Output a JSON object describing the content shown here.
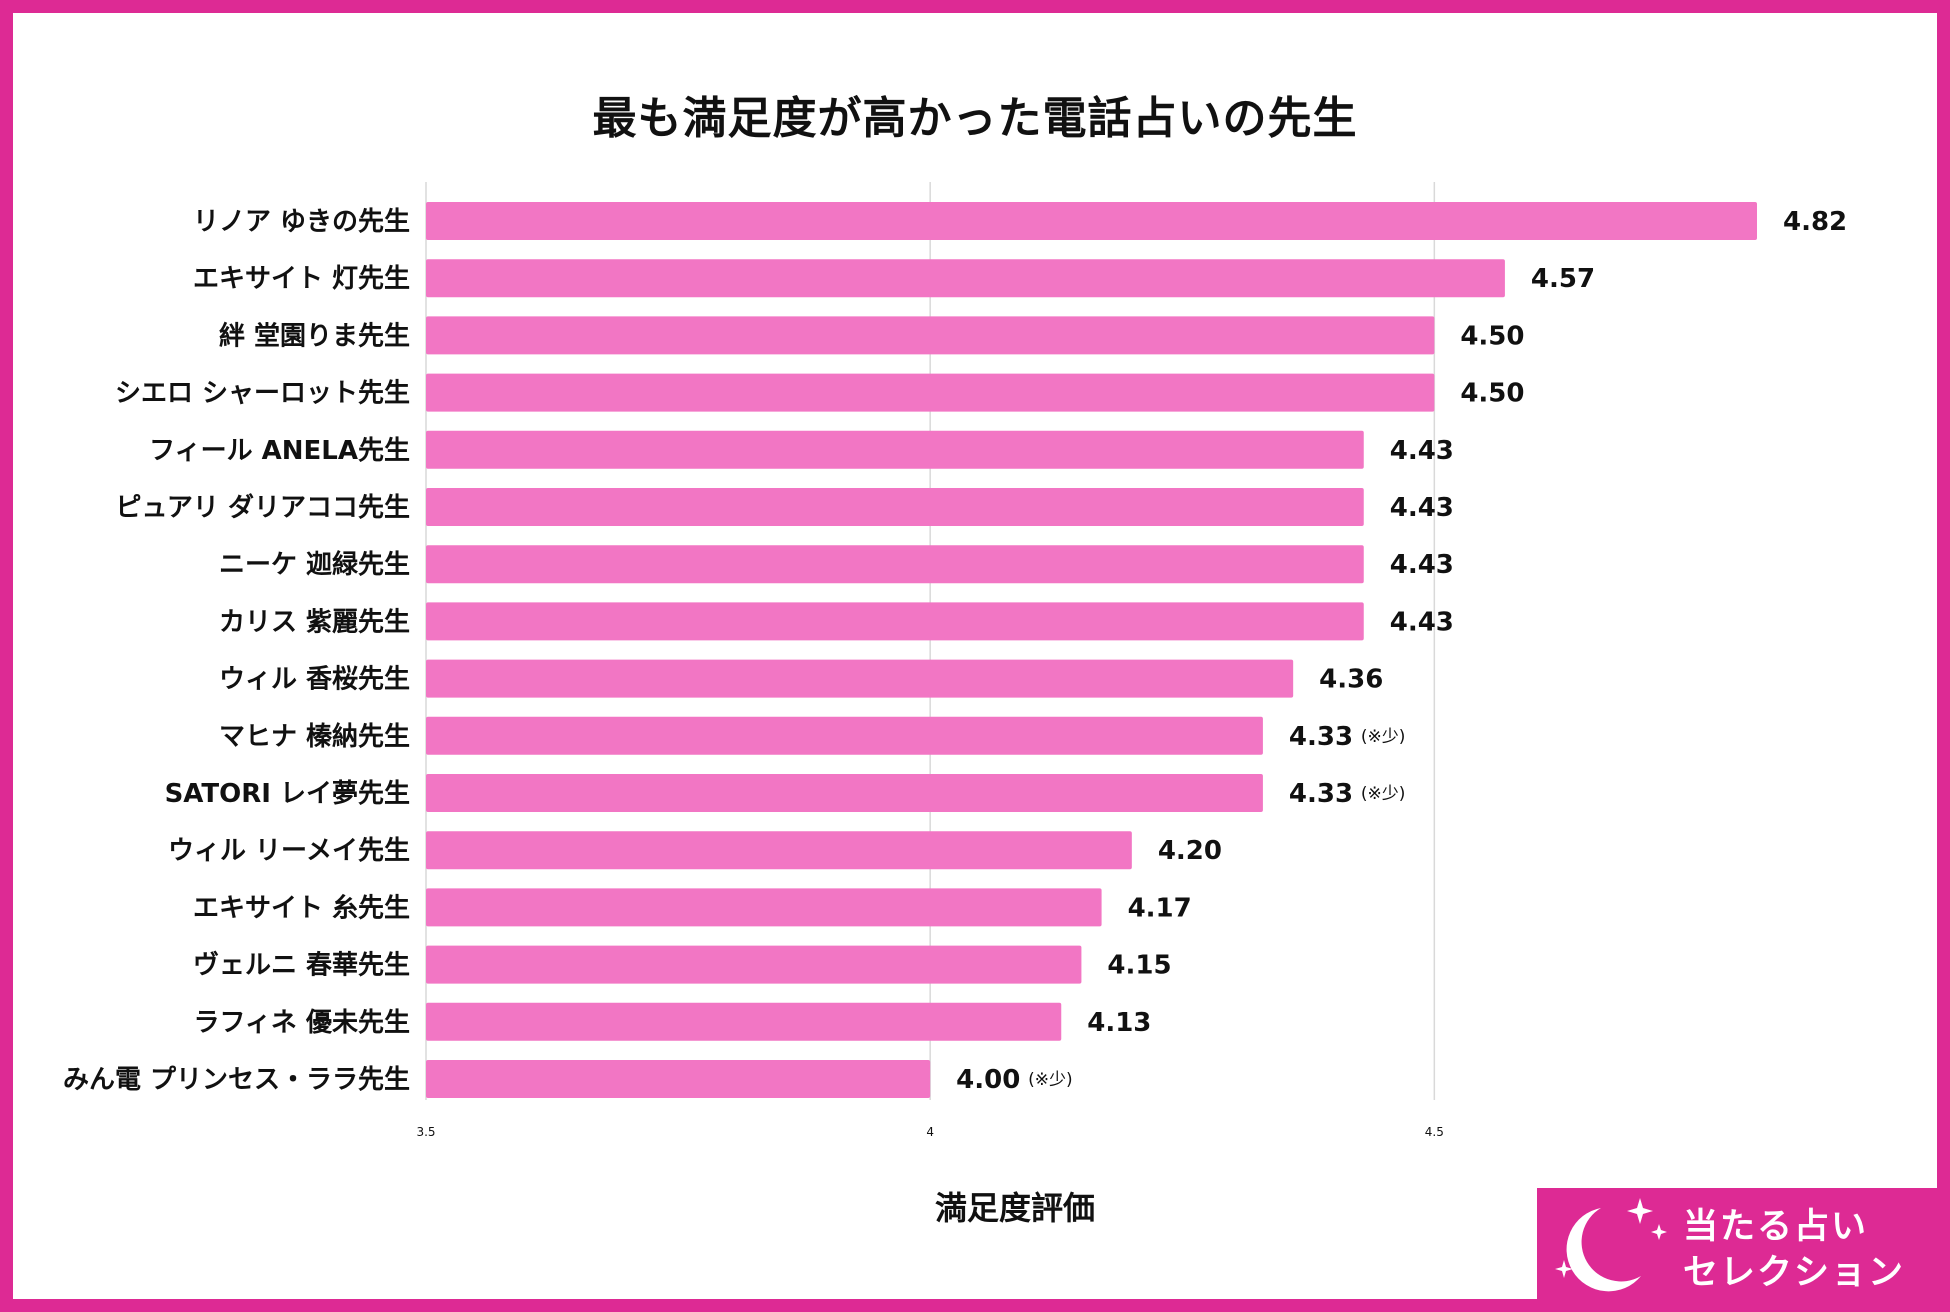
{
  "colors": {
    "frame": "#dd2a94",
    "bar": "#f276c4",
    "grid": "#d9d9d9",
    "text": "#111111"
  },
  "chart_data": {
    "type": "bar",
    "orientation": "horizontal",
    "title": "最も満足度が高かった電話占いの先生",
    "xlabel": "満足度評価",
    "ylabel": "",
    "xlim": [
      3.5,
      4.82
    ],
    "xticks": [
      "3.5",
      "4",
      "4.5"
    ],
    "grid": true,
    "categories": [
      "リノア ゆきの先生",
      "エキサイト 灯先生",
      "絆 堂園りま先生",
      "シエロ シャーロット先生",
      "フィール ANELA先生",
      "ピュアリ ダリアココ先生",
      "ニーケ 迦緑先生",
      "カリス 紫麗先生",
      "ウィル 香桜先生",
      "マヒナ 榛納先生",
      "SATORI レイ夢先生",
      "ウィル リーメイ先生",
      "エキサイト 糸先生",
      "ヴェルニ 春華先生",
      "ラフィネ 優未先生",
      "みん電 プリンセス・ララ先生"
    ],
    "values": [
      4.82,
      4.57,
      4.5,
      4.5,
      4.43,
      4.43,
      4.43,
      4.43,
      4.36,
      4.33,
      4.33,
      4.2,
      4.17,
      4.15,
      4.13,
      4.0
    ],
    "data_labels": [
      "4.82",
      "4.57",
      "4.50",
      "4.50",
      "4.43",
      "4.43",
      "4.43",
      "4.43",
      "4.36",
      "4.33",
      "4.33",
      "4.20",
      "4.17",
      "4.15",
      "4.13",
      "4.00"
    ],
    "annotations": [
      "",
      "",
      "",
      "",
      "",
      "",
      "",
      "",
      "",
      "(※少)",
      "(※少)",
      "",
      "",
      "",
      "",
      "(※少)"
    ]
  },
  "logo": {
    "line1": "当たる占い",
    "line2": "セレクション"
  }
}
